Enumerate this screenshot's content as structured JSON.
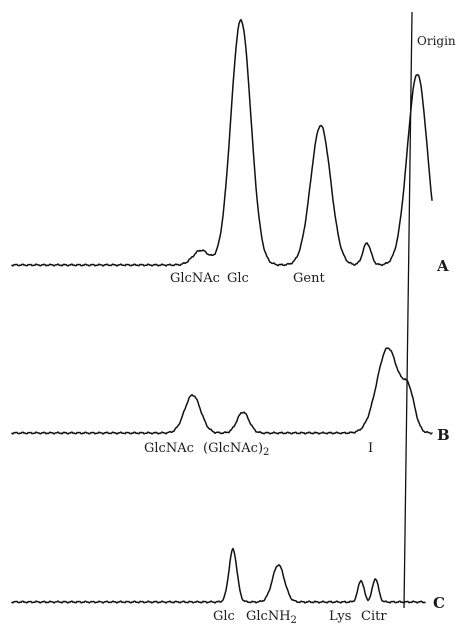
{
  "chart_data": {
    "type": "line",
    "origin_label": "Origin",
    "traces": [
      {
        "name": "A",
        "labels": [
          "GlcNAc",
          "Glc",
          "Gent"
        ],
        "peaks": [
          {
            "x": 0.45,
            "height": 0.06
          },
          {
            "x": 0.545,
            "height": 1.0
          },
          {
            "x": 0.735,
            "height": 0.57
          },
          {
            "x": 0.845,
            "height": 0.09
          },
          {
            "x": 0.965,
            "height": 0.78
          }
        ]
      },
      {
        "name": "B",
        "labels": [
          "GlcNAc",
          "(GlcNAc)2",
          "I"
        ],
        "peaks": [
          {
            "x": 0.43,
            "height": 0.38
          },
          {
            "x": 0.55,
            "height": 0.21
          },
          {
            "x": 0.895,
            "height": 0.85
          },
          {
            "x": 0.945,
            "height": 0.35
          }
        ]
      },
      {
        "name": "C",
        "labels": [
          "Glc",
          "GlcNH2",
          "Lys",
          "Citr"
        ],
        "peaks": [
          {
            "x": 0.535,
            "height": 0.85
          },
          {
            "x": 0.645,
            "height": 0.6
          },
          {
            "x": 0.845,
            "height": 0.35
          },
          {
            "x": 0.88,
            "height": 0.38
          }
        ]
      }
    ]
  }
}
